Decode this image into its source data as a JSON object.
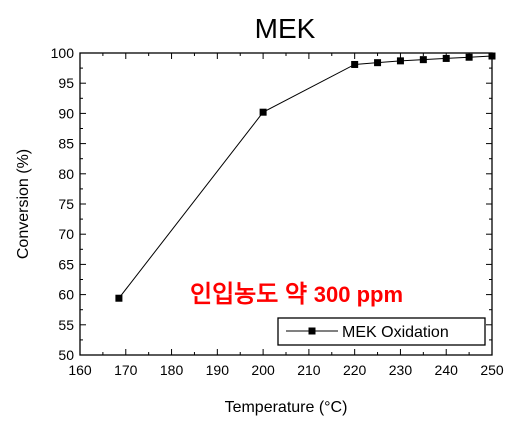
{
  "chart_data": {
    "type": "line",
    "title": "MEK",
    "xlabel": "Temperature (°C)",
    "ylabel": "Conversion (%)",
    "xlim": [
      160,
      250
    ],
    "ylim": [
      50,
      100
    ],
    "x_ticks": [
      "160",
      "170",
      "180",
      "190",
      "200",
      "210",
      "220",
      "230",
      "240",
      "250"
    ],
    "y_ticks": [
      "50",
      "55",
      "60",
      "65",
      "70",
      "75",
      "80",
      "85",
      "90",
      "95",
      "100"
    ],
    "series": [
      {
        "name": "MEK Oxidation",
        "x": [
          168.5,
          200,
          220,
          225,
          230,
          235,
          240,
          245,
          250
        ],
        "y": [
          59.4,
          90.2,
          98.1,
          98.4,
          98.7,
          98.9,
          99.1,
          99.3,
          99.5
        ]
      }
    ],
    "annotation": {
      "text_main": "인입농도 약 ",
      "text_value": "300 ppm",
      "color": "#ff0000"
    },
    "legend_position": "bottom-right",
    "grid": false,
    "marker": "square",
    "line_color": "#000000"
  }
}
